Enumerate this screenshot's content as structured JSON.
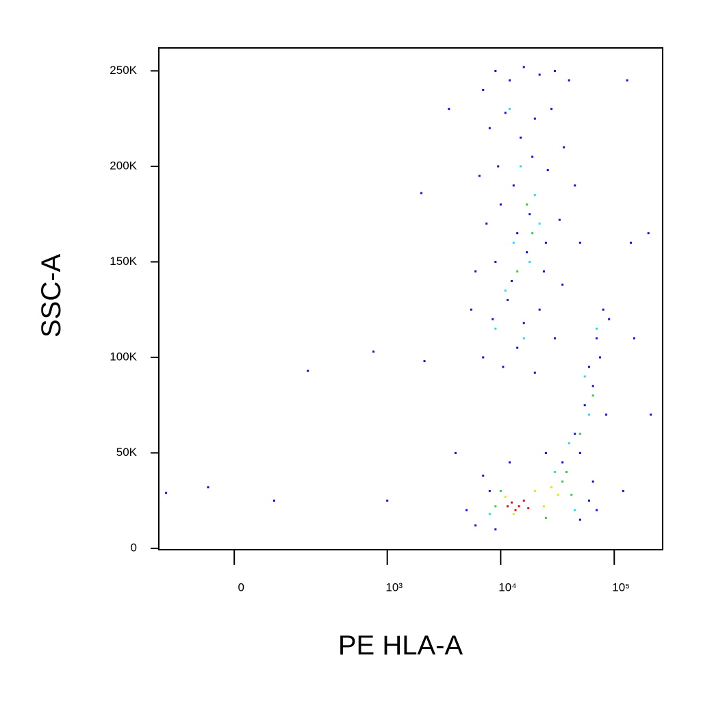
{
  "chart_data": {
    "type": "scatter",
    "x_label": "PE HLA-A",
    "y_label": "SSC-A",
    "xscale": "biexponential",
    "xlim": [
      -198,
      267000
    ],
    "ylim": [
      -700,
      262000
    ],
    "xticks": [
      0,
      {
        "value": 1000,
        "label": "10³"
      },
      {
        "value": 10000,
        "label": "10⁴"
      },
      {
        "value": 100000,
        "label": "10⁵"
      }
    ],
    "yticks": [
      0,
      {
        "value": 50000,
        "label": "50K"
      },
      {
        "value": 100000,
        "label": "100K"
      },
      {
        "value": 150000,
        "label": "150K"
      },
      {
        "value": 200000,
        "label": "200K"
      },
      {
        "value": 250000,
        "label": "250K"
      }
    ],
    "series": [
      {
        "color": "#1010e8",
        "x": [
          7000,
          9000,
          12000,
          16000,
          22000,
          30000,
          40000,
          8000,
          11000,
          15000,
          20000,
          28000,
          36000,
          6500,
          9500,
          13000,
          19000,
          26000,
          45000,
          7500,
          10000,
          14000,
          18000,
          25000,
          33000,
          50000,
          6000,
          9000,
          12500,
          17000,
          24000,
          35000,
          5500,
          8500,
          11500,
          16000,
          22000,
          30000,
          7000,
          10500,
          14000,
          20000,
          45000,
          55000,
          60000,
          70000,
          80000,
          65000,
          50000,
          75000,
          90000,
          85000,
          5000,
          6000,
          8000,
          7000,
          50000,
          60000,
          65000,
          70000,
          12000,
          25000,
          35000,
          9000,
          -168,
          -50,
          81,
          190,
          755,
          1000,
          2130,
          2000,
          3500,
          4000,
          120000,
          130000,
          140000,
          150000,
          200000,
          210000
        ],
        "values": [
          240000,
          250000,
          245000,
          252000,
          248000,
          250000,
          245000,
          220000,
          228000,
          215000,
          225000,
          230000,
          210000,
          195000,
          200000,
          190000,
          205000,
          198000,
          190000,
          170000,
          180000,
          165000,
          175000,
          160000,
          172000,
          160000,
          145000,
          150000,
          140000,
          155000,
          145000,
          138000,
          125000,
          120000,
          130000,
          118000,
          125000,
          110000,
          100000,
          95000,
          105000,
          92000,
          60000,
          75000,
          95000,
          110000,
          125000,
          85000,
          50000,
          100000,
          120000,
          70000,
          20000,
          12000,
          30000,
          38000,
          15000,
          25000,
          35000,
          20000,
          45000,
          50000,
          45000,
          10000,
          29000,
          32000,
          25000,
          93000,
          103000,
          25000,
          98000,
          186000,
          230000,
          50000,
          30000,
          245000,
          160000,
          110000,
          165000,
          70000
        ]
      },
      {
        "color": "#20e0e8",
        "x": [
          12000,
          15000,
          20000,
          13000,
          18000,
          11000,
          22000,
          16000,
          9000,
          55000,
          70000,
          60000,
          40000,
          30000,
          8000,
          45000
        ],
        "values": [
          230000,
          200000,
          185000,
          160000,
          150000,
          135000,
          170000,
          110000,
          115000,
          90000,
          115000,
          70000,
          55000,
          40000,
          18000,
          20000
        ]
      },
      {
        "color": "#30d040",
        "x": [
          17000,
          14000,
          19000,
          65000,
          50000,
          10000,
          35000,
          42000,
          9000,
          25000,
          38000
        ],
        "values": [
          180000,
          145000,
          165000,
          80000,
          60000,
          30000,
          35000,
          28000,
          22000,
          16000,
          40000
        ]
      },
      {
        "color": "#e8e020",
        "x": [
          11000,
          20000,
          28000,
          13000,
          24000,
          32000
        ],
        "values": [
          27000,
          30000,
          32000,
          18000,
          22000,
          28000
        ]
      },
      {
        "color": "#e81010",
        "x": [
          12500,
          14500,
          16000,
          13500,
          17500,
          11500
        ],
        "values": [
          24000,
          22000,
          25000,
          20000,
          21000,
          22000
        ]
      }
    ]
  }
}
